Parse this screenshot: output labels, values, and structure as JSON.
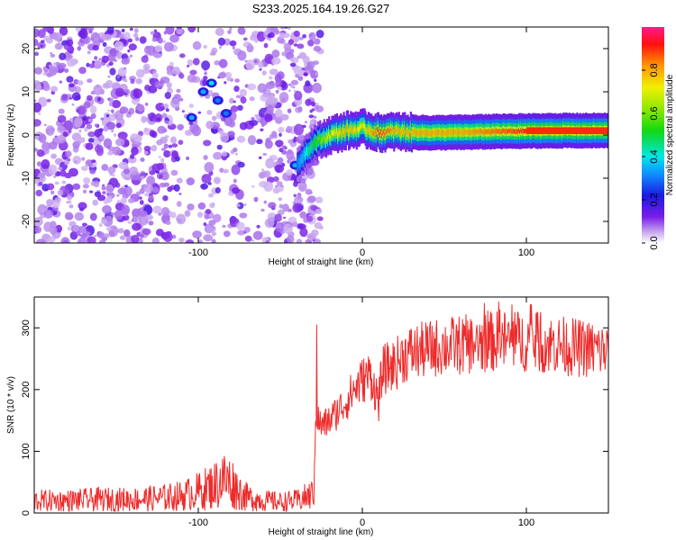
{
  "title": "S233.2025.164.19.26.G27",
  "colors": {
    "snr_line": "#ee2b2b",
    "axis": "#000000",
    "background": "#ffffff"
  },
  "chart_data": [
    {
      "type": "heatmap",
      "xlabel": "Height of straight line (km)",
      "ylabel": "Frequency (Hz)",
      "xlim": [
        -200,
        150
      ],
      "ylim": [
        -25,
        25
      ],
      "xticks": [
        -100,
        0,
        100
      ],
      "yticks": [
        -20,
        -10,
        0,
        10,
        20
      ],
      "colorbar": {
        "label": "Normalized spectral amplitude",
        "range": [
          0,
          1
        ],
        "ticks": [
          "0.0",
          "0.2",
          "0.4",
          "0.6",
          "0.8"
        ],
        "colormap": "rainbow (white-purple-blue-cyan-green-yellow-red-magenta)"
      },
      "description_of_content": "scattered low-amplitude noise for heights below about -30 km; bright coherent ridge near 0 Hz from about -30 km to 150 km",
      "ridge": {
        "x": [
          -40,
          -35,
          -30,
          -20,
          -10,
          0,
          10,
          20,
          40,
          60,
          80,
          100,
          120,
          150
        ],
        "y": [
          -7,
          -4,
          -2,
          0,
          1,
          1.5,
          0.5,
          0.8,
          0.5,
          0.6,
          0.8,
          0.9,
          1,
          1
        ],
        "amplitude": [
          0.3,
          0.4,
          0.5,
          0.7,
          0.8,
          0.7,
          0.9,
          0.8,
          0.8,
          0.8,
          0.85,
          0.9,
          0.9,
          0.9
        ]
      },
      "hotspots": [
        {
          "x": -92,
          "y": 12,
          "amplitude": 0.4
        },
        {
          "x": -97,
          "y": 10,
          "amplitude": 0.35
        },
        {
          "x": -104,
          "y": 4,
          "amplitude": 0.35
        },
        {
          "x": -88,
          "y": 8,
          "amplitude": 0.3
        },
        {
          "x": -83,
          "y": 5,
          "amplitude": 0.3
        },
        {
          "x": -41,
          "y": -7,
          "amplitude": 0.35
        },
        {
          "x": -37,
          "y": -8,
          "amplitude": 0.35
        }
      ]
    },
    {
      "type": "line",
      "xlabel": "Height of straight line (km)",
      "ylabel": "SNR (10 * v/v)",
      "xlim": [
        -200,
        150
      ],
      "ylim": [
        0,
        350
      ],
      "xticks": [
        -100,
        0,
        100
      ],
      "yticks": [
        0,
        100,
        200,
        300
      ],
      "series": [
        {
          "x": [
            -200,
            -180,
            -160,
            -140,
            -120,
            -110,
            -100,
            -90,
            -85,
            -80,
            -75,
            -70,
            -60,
            -50,
            -40,
            -35,
            -30,
            -28,
            -25,
            -20,
            -15,
            -10,
            -5,
            0,
            5,
            10,
            12,
            15,
            20,
            25,
            30,
            40,
            50,
            60,
            70,
            80,
            90,
            100,
            110,
            120,
            130,
            140,
            150
          ],
          "y": [
            20,
            20,
            22,
            22,
            25,
            28,
            35,
            45,
            55,
            50,
            35,
            25,
            20,
            18,
            20,
            25,
            30,
            160,
            140,
            150,
            165,
            180,
            200,
            215,
            225,
            180,
            230,
            235,
            240,
            255,
            260,
            265,
            270,
            272,
            275,
            278,
            280,
            278,
            276,
            272,
            268,
            265,
            262
          ]
        }
      ]
    }
  ]
}
